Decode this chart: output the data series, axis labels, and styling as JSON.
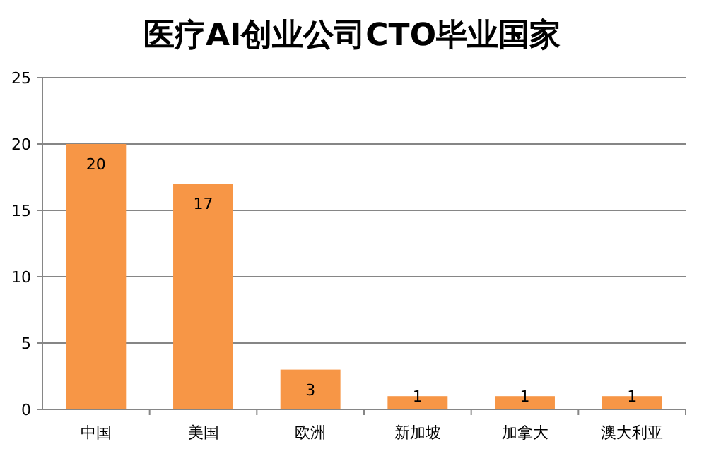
{
  "chart_data": {
    "type": "bar",
    "title": "医疗AI创业公司CTO毕业国家",
    "categories": [
      "中国",
      "美国",
      "欧洲",
      "新加坡",
      "加拿大",
      "澳大利亚"
    ],
    "values": [
      20,
      17,
      3,
      1,
      1,
      1
    ],
    "color": "#f79646",
    "ylim": [
      0,
      25
    ],
    "yticks": [
      0,
      5,
      10,
      15,
      20,
      25
    ],
    "grid": "y",
    "data_labels": true
  }
}
